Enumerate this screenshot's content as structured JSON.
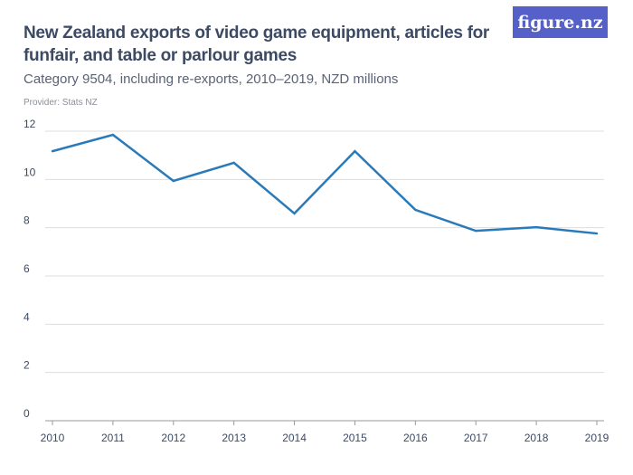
{
  "title": "New Zealand exports of video game equipment, articles for funfair, and table or parlour games",
  "subtitle": "Category 9504, including re-exports, 2010–2019, NZD millions",
  "provider": "Provider: Stats NZ",
  "logo": "figure.nz",
  "chart_data": {
    "type": "line",
    "x": [
      "2010",
      "2011",
      "2012",
      "2013",
      "2014",
      "2015",
      "2016",
      "2017",
      "2018",
      "2019"
    ],
    "series": [
      {
        "values": [
          11.17,
          11.85,
          9.94,
          10.69,
          8.59,
          11.17,
          8.74,
          7.87,
          8.02,
          7.76
        ],
        "color": "#2a7ab9"
      }
    ],
    "yticks": [
      "0",
      "2",
      "4",
      "6",
      "8",
      "10",
      "12"
    ],
    "ylim": [
      0,
      12
    ],
    "grid": true
  }
}
